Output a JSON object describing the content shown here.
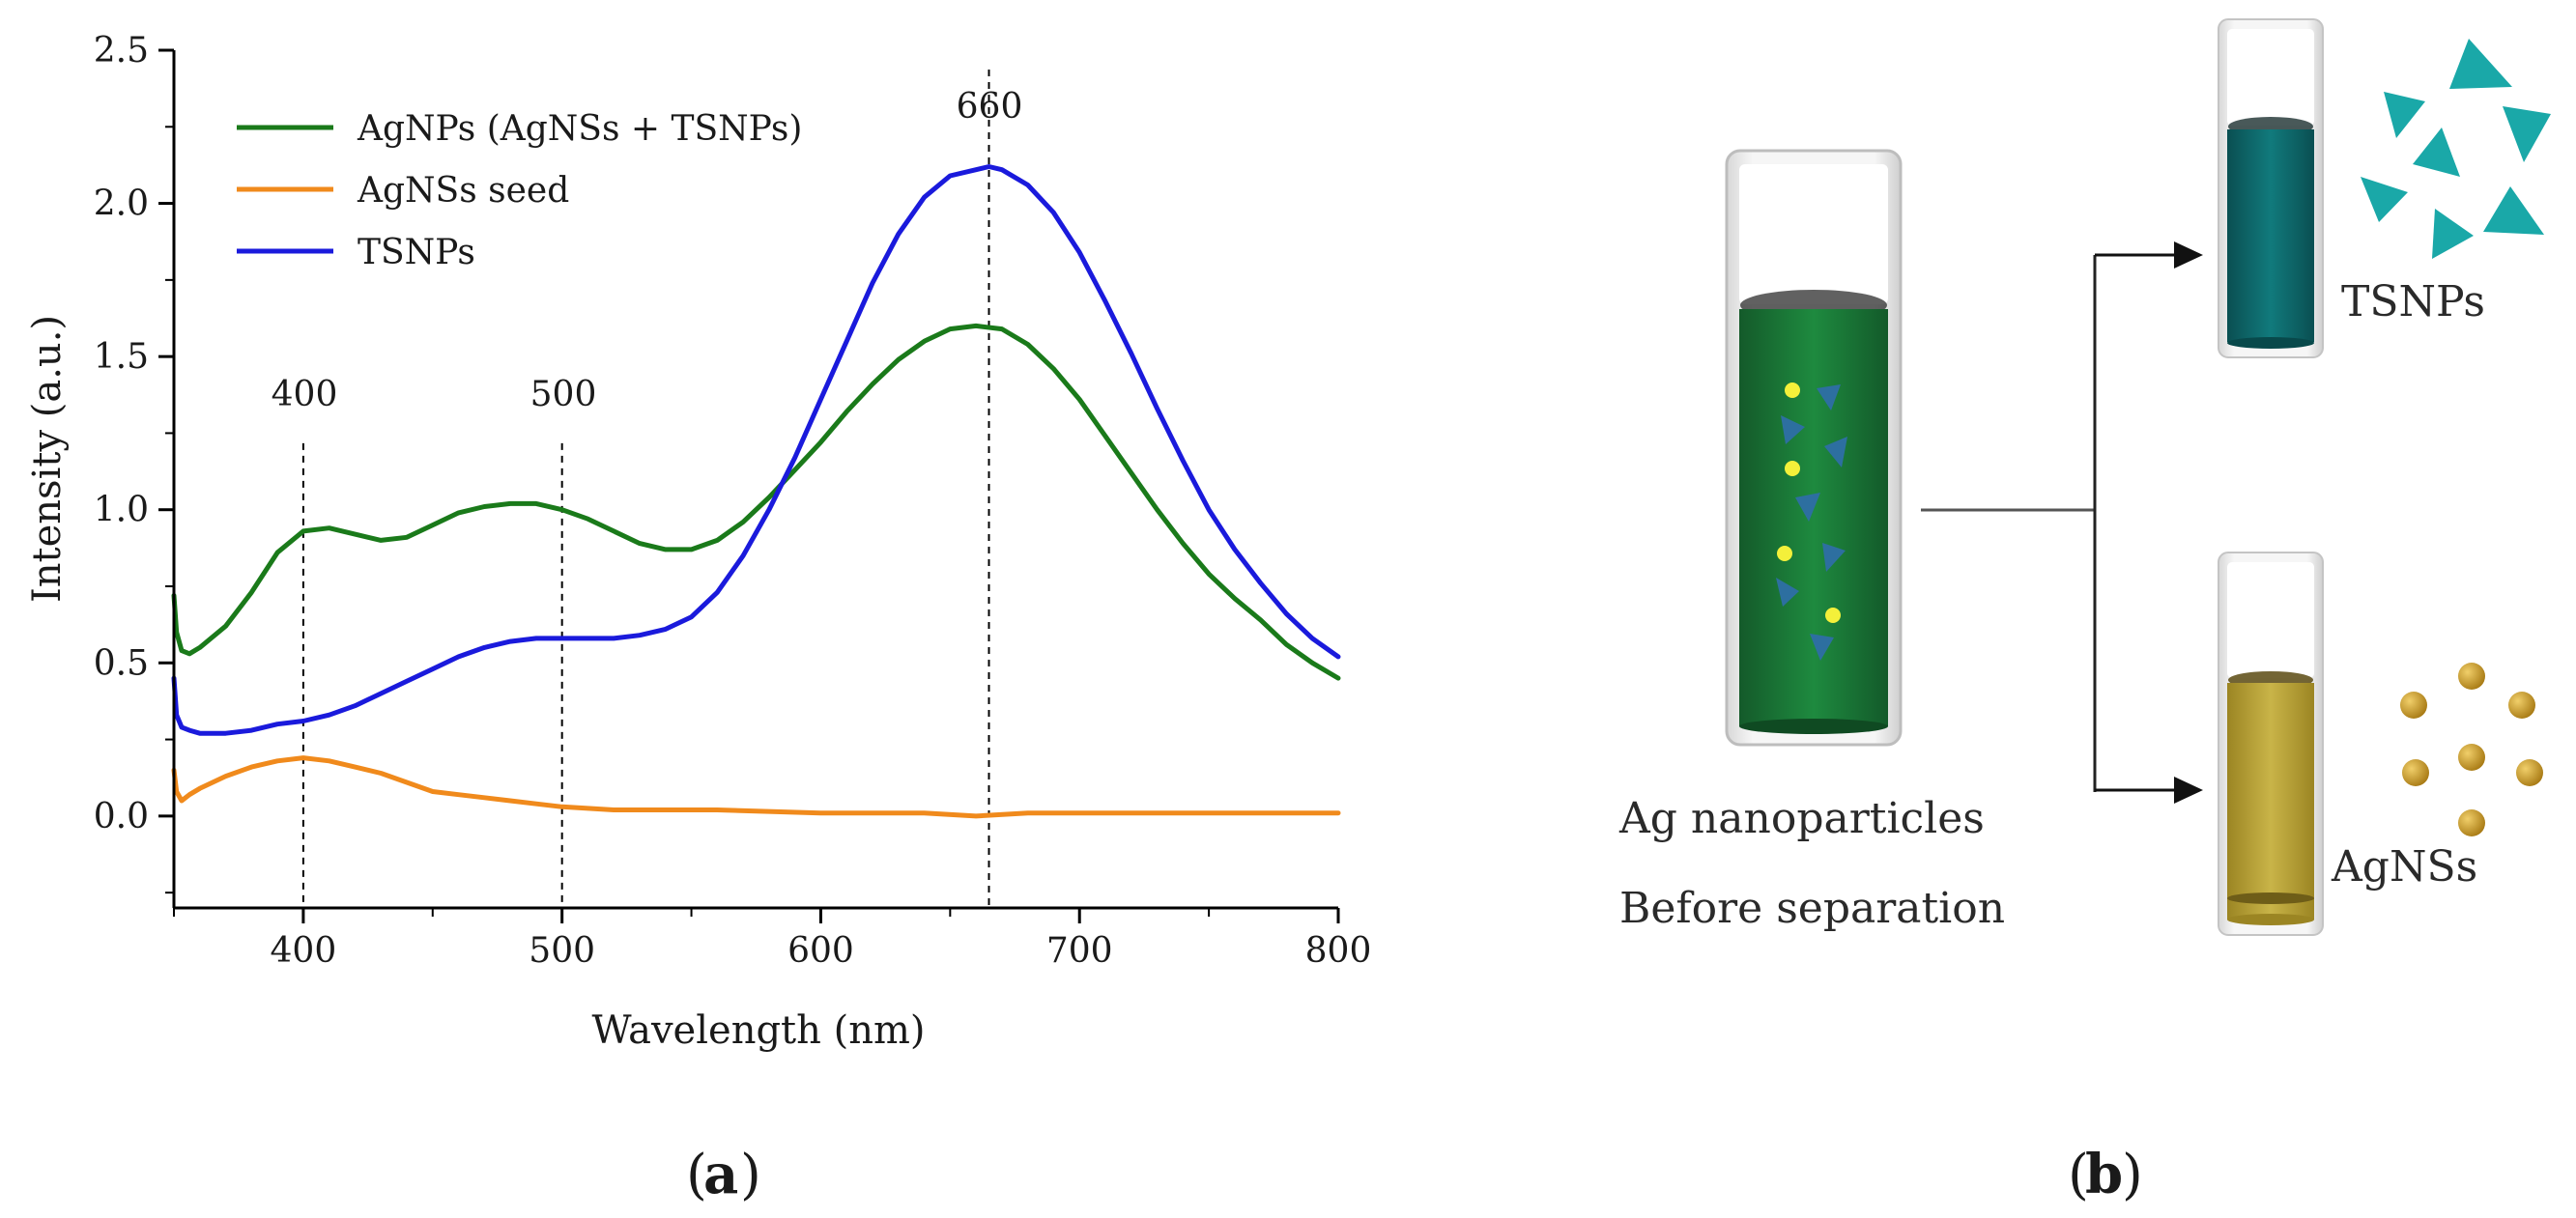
{
  "chart_data": {
    "type": "line",
    "xlabel": "Wavelength (nm)",
    "ylabel": "Intensity (a.u.)",
    "xlim": [
      350,
      800
    ],
    "ylim": [
      -0.3,
      2.5
    ],
    "xticks": [
      400,
      500,
      600,
      700,
      800
    ],
    "yticks": [
      0.0,
      0.5,
      1.0,
      1.5,
      2.0,
      2.5
    ],
    "xtick_labels": [
      "400",
      "500",
      "600",
      "700",
      "800"
    ],
    "ytick_labels": [
      "0.0",
      "0.5",
      "1.0",
      "1.5",
      "2.0",
      "2.5"
    ],
    "legend_position": "top-left",
    "series": [
      {
        "name": "AgNPs (AgNSs + TSNPs)",
        "color": "#1a7a1a",
        "x": [
          350,
          351,
          353,
          356,
          360,
          370,
          380,
          390,
          400,
          410,
          420,
          430,
          440,
          450,
          460,
          470,
          480,
          490,
          500,
          510,
          520,
          530,
          540,
          550,
          560,
          570,
          580,
          590,
          600,
          610,
          620,
          630,
          640,
          650,
          660,
          670,
          680,
          690,
          700,
          710,
          720,
          730,
          740,
          750,
          760,
          770,
          780,
          790,
          800
        ],
        "values": [
          0.72,
          0.6,
          0.54,
          0.53,
          0.55,
          0.62,
          0.73,
          0.86,
          0.93,
          0.94,
          0.92,
          0.9,
          0.91,
          0.95,
          0.99,
          1.01,
          1.02,
          1.02,
          1.0,
          0.97,
          0.93,
          0.89,
          0.87,
          0.87,
          0.9,
          0.96,
          1.04,
          1.13,
          1.22,
          1.32,
          1.41,
          1.49,
          1.55,
          1.59,
          1.6,
          1.59,
          1.54,
          1.46,
          1.36,
          1.24,
          1.12,
          1.0,
          0.89,
          0.79,
          0.71,
          0.64,
          0.56,
          0.5,
          0.45
        ]
      },
      {
        "name": "AgNSs seed",
        "color": "#f08a1c",
        "x": [
          350,
          351,
          353,
          356,
          360,
          370,
          380,
          390,
          400,
          410,
          420,
          430,
          440,
          450,
          460,
          470,
          480,
          490,
          500,
          520,
          540,
          560,
          600,
          640,
          660,
          680,
          720,
          760,
          800
        ],
        "values": [
          0.15,
          0.08,
          0.05,
          0.07,
          0.09,
          0.13,
          0.16,
          0.18,
          0.19,
          0.18,
          0.16,
          0.14,
          0.11,
          0.08,
          0.07,
          0.06,
          0.05,
          0.04,
          0.03,
          0.02,
          0.02,
          0.02,
          0.01,
          0.01,
          0.0,
          0.01,
          0.01,
          0.01,
          0.01
        ]
      },
      {
        "name": "TSNPs",
        "color": "#1a1adc",
        "x": [
          350,
          351,
          353,
          356,
          360,
          370,
          380,
          390,
          400,
          410,
          420,
          430,
          440,
          450,
          460,
          470,
          480,
          490,
          500,
          510,
          520,
          530,
          540,
          550,
          560,
          570,
          580,
          590,
          600,
          610,
          620,
          630,
          640,
          650,
          660,
          665,
          670,
          680,
          690,
          700,
          710,
          720,
          730,
          740,
          750,
          760,
          770,
          780,
          790,
          800
        ],
        "values": [
          0.45,
          0.33,
          0.29,
          0.28,
          0.27,
          0.27,
          0.28,
          0.3,
          0.31,
          0.33,
          0.36,
          0.4,
          0.44,
          0.48,
          0.52,
          0.55,
          0.57,
          0.58,
          0.58,
          0.58,
          0.58,
          0.59,
          0.61,
          0.65,
          0.73,
          0.85,
          1.0,
          1.17,
          1.36,
          1.55,
          1.74,
          1.9,
          2.02,
          2.09,
          2.11,
          2.12,
          2.11,
          2.06,
          1.97,
          1.84,
          1.68,
          1.51,
          1.33,
          1.16,
          1.0,
          0.87,
          0.76,
          0.66,
          0.58,
          0.52
        ]
      }
    ],
    "annotations": [
      {
        "label": "400",
        "x": 400
      },
      {
        "label": "500",
        "x": 500
      },
      {
        "label": "660",
        "x": 665
      }
    ]
  },
  "captions": {
    "a": "a",
    "b": "b"
  },
  "panel_b": {
    "labels": {
      "mixture_line1": "Ag nanoparticles",
      "mixture_line2": "Before separation",
      "top_product": "TSNPs",
      "bottom_product": "AgNSs"
    },
    "colors": {
      "mixture_liquid": "#1d7a3a",
      "tsnp_liquid": "#0e6f70",
      "agns_liquid": "#b8a23a",
      "triangle_particle": "#1aa8a8",
      "sphere_particle": "#c79a2a",
      "dot_particle": "#f4f03a",
      "arrow": "#111111"
    }
  }
}
